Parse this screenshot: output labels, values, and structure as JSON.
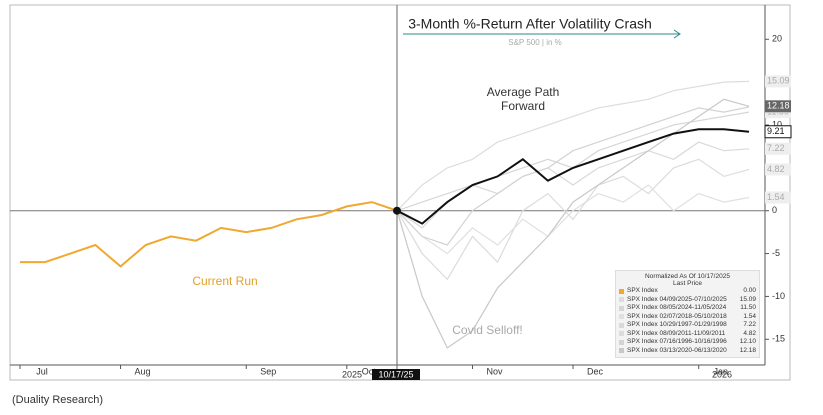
{
  "chart_data": {
    "type": "line",
    "title": "3-Month %-Return After Volatility Crash",
    "subtitle": "S&P 500 | in %",
    "categories": [
      "Jul",
      null,
      null,
      null,
      "Aug",
      null,
      null,
      null,
      null,
      "Sep",
      null,
      null,
      null,
      "Oct",
      null,
      null,
      null,
      null,
      "Nov",
      null,
      null,
      null,
      "Dec",
      null,
      null,
      null,
      null,
      "Jan",
      null,
      null
    ],
    "year_labels": [
      "2025",
      "2026"
    ],
    "marker_label": "10/17/25",
    "ylim": [
      -18,
      24
    ],
    "yticks": [
      -15,
      -10,
      -5,
      0,
      10,
      20
    ],
    "annotations": [
      "Average Path Forward",
      "Current Run",
      "Covid Selloff!"
    ],
    "legend": {
      "title": "Normalized As Of 10/17/2025",
      "header": "Last Price"
    },
    "series": [
      {
        "name": "SPX Index 04/09/2025-07/10/2025",
        "color": "#dddddd",
        "last_price": {
          "value": 15.09,
          "label": "15.09"
        },
        "values": [
          null,
          null,
          null,
          null,
          null,
          null,
          null,
          null,
          null,
          null,
          null,
          null,
          null,
          null,
          null,
          0,
          3,
          5,
          6,
          8,
          9,
          10,
          11,
          12,
          12.5,
          13,
          14,
          14.5,
          15,
          15.09
        ]
      },
      {
        "name": "SPX Index 08/05/2024-11/05/2024",
        "color": "#d6d6d6",
        "last_price": {
          "value": 11.5,
          "label": "11.50"
        },
        "values": [
          null,
          null,
          null,
          null,
          null,
          null,
          null,
          null,
          null,
          null,
          null,
          null,
          null,
          null,
          null,
          0,
          1,
          2,
          3,
          4,
          5,
          6,
          5,
          7,
          8,
          9,
          10,
          10.5,
          11,
          11.5
        ]
      },
      {
        "name": "SPX Index 02/07/2018-05/10/2018",
        "color": "#e0e0e0",
        "last_price": {
          "value": 1.54,
          "label": "1.54"
        },
        "values": [
          null,
          null,
          null,
          null,
          null,
          null,
          null,
          null,
          null,
          null,
          null,
          null,
          null,
          null,
          null,
          0,
          -3,
          -5,
          -2,
          -4,
          -1,
          -3,
          0,
          2,
          1,
          3,
          0,
          2,
          1,
          1.54
        ]
      },
      {
        "name": "SPX Index 10/29/1997-01/29/1998",
        "color": "#d9d9d9",
        "last_price": {
          "value": 7.22,
          "label": "7.22"
        },
        "values": [
          null,
          null,
          null,
          null,
          null,
          null,
          null,
          null,
          null,
          null,
          null,
          null,
          null,
          null,
          null,
          0,
          -2,
          1,
          3,
          2,
          4,
          5,
          3,
          5,
          6,
          7,
          6,
          8,
          7,
          7.22
        ]
      },
      {
        "name": "SPX Index 08/09/2011-11/09/2011",
        "color": "#dcdcdc",
        "last_price": {
          "value": 4.82,
          "label": "4.82"
        },
        "values": [
          null,
          null,
          null,
          null,
          null,
          null,
          null,
          null,
          null,
          null,
          null,
          null,
          null,
          null,
          null,
          0,
          -5,
          -8,
          -3,
          -6,
          0,
          2,
          -1,
          3,
          4,
          2,
          5,
          6,
          4,
          4.82
        ]
      },
      {
        "name": "SPX Index 07/16/1996-10/16/1996",
        "color": "#d3d3d3",
        "last_price": {
          "value": 12.1,
          "label": "12.10"
        },
        "values": [
          null,
          null,
          null,
          null,
          null,
          null,
          null,
          null,
          null,
          null,
          null,
          null,
          null,
          null,
          null,
          0,
          -3,
          -4,
          0,
          2,
          4,
          5,
          7,
          8,
          9,
          10,
          11,
          12,
          11.5,
          12.1
        ]
      },
      {
        "name": "SPX Index 03/13/2020-06/13/2020",
        "color": "#c8c8c8",
        "last_price": {
          "value": 12.18,
          "label": "12.18"
        },
        "values": [
          null,
          null,
          null,
          null,
          null,
          null,
          null,
          null,
          null,
          null,
          null,
          null,
          null,
          null,
          null,
          0,
          -10,
          -16,
          -14,
          -9,
          -6,
          -3,
          1,
          3,
          5,
          7,
          9,
          11,
          13,
          12.18
        ]
      },
      {
        "name": "SPX Index",
        "color": "#f0a830",
        "last_price": {
          "value": 0,
          "label": "0.00"
        },
        "values": [
          -6,
          -6,
          -5,
          -4,
          -6.5,
          -4,
          -3,
          -3.5,
          -2,
          -2.5,
          -2,
          -1,
          -0.5,
          0.5,
          1,
          0,
          null,
          null,
          null,
          null,
          null,
          null,
          null,
          null,
          null,
          null,
          null,
          null,
          null,
          null
        ]
      },
      {
        "color": "#111111",
        "values": [
          null,
          null,
          null,
          null,
          null,
          null,
          null,
          null,
          null,
          null,
          null,
          null,
          null,
          null,
          null,
          0,
          -1.5,
          1,
          3,
          4,
          6,
          3.5,
          5,
          6,
          7,
          8,
          9,
          9.5,
          9.5,
          9.21
        ],
        "value_labels": [
          null,
          null,
          null,
          null,
          null,
          null,
          null,
          null,
          null,
          null,
          null,
          null,
          null,
          null,
          null,
          null,
          null,
          null,
          null,
          null,
          null,
          null,
          null,
          null,
          null,
          null,
          null,
          null,
          null,
          "9.21"
        ]
      }
    ],
    "source": "(Duality Research)"
  }
}
